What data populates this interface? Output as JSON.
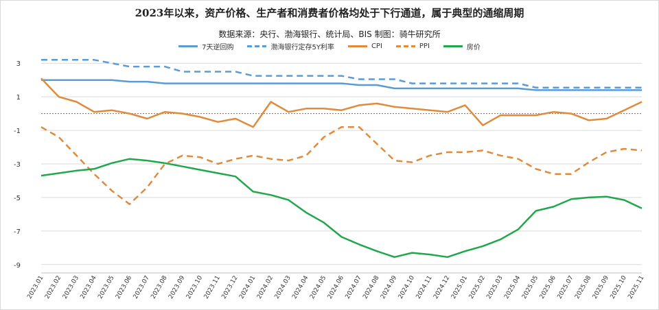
{
  "title": "2023年以来，资产价格、生产者和消费者价格均处于下行通道，属于典型的通缩周期",
  "subtitle": "数据来源：央行、渤海银行、统计局、BIS    制图：骑牛研究所",
  "chart_data": {
    "type": "line",
    "x": [
      "2023.01",
      "2023.02",
      "2023.03",
      "2023.04",
      "2023.05",
      "2023.06",
      "2023.07",
      "2023.08",
      "2023.09",
      "2023.10",
      "2023.11",
      "2023.12",
      "2024.01",
      "2024.02",
      "2024.03",
      "2024.04",
      "2024.05",
      "2024.06",
      "2024.07",
      "2024.08",
      "2024.09",
      "2024.10",
      "2024.11",
      "2024.12",
      "2025.01",
      "2025.02",
      "2025.03",
      "2025.04",
      "2025.05",
      "2025.06",
      "2025.07",
      "2025.08",
      "2025.09",
      "2025.10",
      "2025.11"
    ],
    "yticks": [
      "3",
      "1",
      "-1",
      "-3",
      "-5",
      "-7",
      "-9"
    ],
    "ylim": [
      -9.5,
      3.5
    ],
    "legend_position": "top",
    "series": [
      {
        "name": "7天逆回购",
        "color": "#5b9bd5",
        "style": "solid",
        "values": [
          2.0,
          2.0,
          2.0,
          2.0,
          2.0,
          1.9,
          1.9,
          1.8,
          1.8,
          1.8,
          1.8,
          1.8,
          1.8,
          1.8,
          1.8,
          1.8,
          1.8,
          1.8,
          1.7,
          1.7,
          1.5,
          1.5,
          1.5,
          1.5,
          1.5,
          1.5,
          1.5,
          1.5,
          1.4,
          1.4,
          1.4,
          1.4,
          1.4,
          1.4,
          1.4
        ]
      },
      {
        "name": "渤海银行定存5Y利率",
        "color": "#5b9bd5",
        "style": "dashed",
        "values": [
          3.2,
          3.2,
          3.2,
          3.2,
          3.0,
          2.8,
          2.8,
          2.8,
          2.5,
          2.5,
          2.5,
          2.5,
          2.25,
          2.25,
          2.25,
          2.25,
          2.25,
          2.25,
          2.05,
          2.05,
          2.05,
          1.8,
          1.8,
          1.8,
          1.8,
          1.8,
          1.8,
          1.8,
          1.55,
          1.55,
          1.55,
          1.55,
          1.55,
          1.55,
          1.55
        ]
      },
      {
        "name": "CPI",
        "color": "#e08a3c",
        "style": "solid",
        "values": [
          2.1,
          1.0,
          0.7,
          0.1,
          0.2,
          0.0,
          -0.3,
          0.1,
          0.0,
          -0.2,
          -0.5,
          -0.3,
          -0.8,
          0.7,
          0.1,
          0.3,
          0.3,
          0.2,
          0.5,
          0.6,
          0.4,
          0.3,
          0.2,
          0.1,
          0.5,
          -0.7,
          -0.1,
          -0.1,
          -0.1,
          0.1,
          0.0,
          -0.4,
          -0.3,
          0.2,
          0.7
        ]
      },
      {
        "name": "PPI",
        "color": "#e08a3c",
        "style": "dashed",
        "values": [
          -0.8,
          -1.4,
          -2.5,
          -3.6,
          -4.6,
          -5.4,
          -4.4,
          -3.0,
          -2.5,
          -2.6,
          -3.0,
          -2.7,
          -2.5,
          -2.7,
          -2.8,
          -2.5,
          -1.4,
          -0.8,
          -0.8,
          -1.8,
          -2.8,
          -2.9,
          -2.5,
          -2.3,
          -2.3,
          -2.2,
          -2.5,
          -2.7,
          -3.3,
          -3.6,
          -3.6,
          -2.9,
          -2.3,
          -2.1,
          -2.2
        ]
      },
      {
        "name": "房价",
        "color": "#1fa84a",
        "style": "solid",
        "values": [
          -3.7,
          -3.55,
          -3.4,
          -3.3,
          -2.95,
          -2.7,
          -2.8,
          -2.95,
          -3.15,
          -3.35,
          -3.55,
          -3.75,
          -4.65,
          -4.85,
          -5.15,
          -5.9,
          -6.5,
          -7.35,
          -7.8,
          -8.2,
          -8.55,
          -8.3,
          -8.4,
          -8.55,
          -8.2,
          -7.9,
          -7.5,
          -6.9,
          -5.8,
          -5.55,
          -5.1,
          -5.0,
          -4.95,
          -5.15,
          -5.65
        ]
      }
    ],
    "reference_line": {
      "value": 0,
      "color": "#c0504d",
      "style": "dotted"
    }
  }
}
